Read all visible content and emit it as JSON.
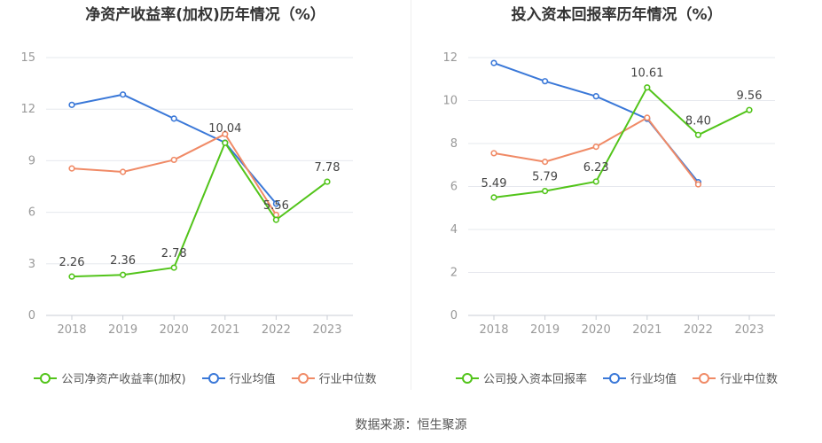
{
  "source": "数据来源：恒生聚源",
  "colors": {
    "company": "#52c41a",
    "avg": "#3a78d8",
    "median": "#f08a66",
    "grid": "#e6e8ee",
    "axis": "#999999"
  },
  "chart_data": [
    {
      "type": "line",
      "title": "净资产收益率(加权)历年情况（%）",
      "categories": [
        "2018",
        "2019",
        "2020",
        "2021",
        "2022",
        "2023"
      ],
      "ylim": [
        0,
        15
      ],
      "yticks": [
        "0",
        "3",
        "6",
        "9",
        "12",
        "15"
      ],
      "grid": true,
      "legend_position": "bottom",
      "series": [
        {
          "name": "公司净资产收益率(加权)",
          "key": "company",
          "values": [
            2.26,
            2.36,
            2.78,
            10.04,
            5.56,
            7.78
          ],
          "labels": [
            "2.26",
            "2.36",
            "2.78",
            "10.04",
            "5.56",
            "7.78"
          ]
        },
        {
          "name": "行业均值",
          "key": "avg",
          "values": [
            12.25,
            12.85,
            11.45,
            10.05,
            6.5,
            null
          ]
        },
        {
          "name": "行业中位数",
          "key": "median",
          "values": [
            8.55,
            8.35,
            9.05,
            10.55,
            5.85,
            null
          ]
        }
      ]
    },
    {
      "type": "line",
      "title": "投入资本回报率历年情况（%）",
      "categories": [
        "2018",
        "2019",
        "2020",
        "2021",
        "2022",
        "2023"
      ],
      "ylim": [
        0,
        12
      ],
      "yticks": [
        "0",
        "2",
        "4",
        "6",
        "8",
        "10",
        "12"
      ],
      "grid": true,
      "legend_position": "bottom",
      "series": [
        {
          "name": "公司投入资本回报率",
          "key": "company",
          "values": [
            5.49,
            5.79,
            6.23,
            10.61,
            8.4,
            9.56
          ],
          "labels": [
            "5.49",
            "5.79",
            "6.23",
            "10.61",
            "8.40",
            "9.56"
          ]
        },
        {
          "name": "行业均值",
          "key": "avg",
          "values": [
            11.75,
            10.9,
            10.2,
            9.15,
            6.2,
            null
          ]
        },
        {
          "name": "行业中位数",
          "key": "median",
          "values": [
            7.55,
            7.15,
            7.85,
            9.2,
            6.1,
            null
          ]
        }
      ]
    }
  ]
}
